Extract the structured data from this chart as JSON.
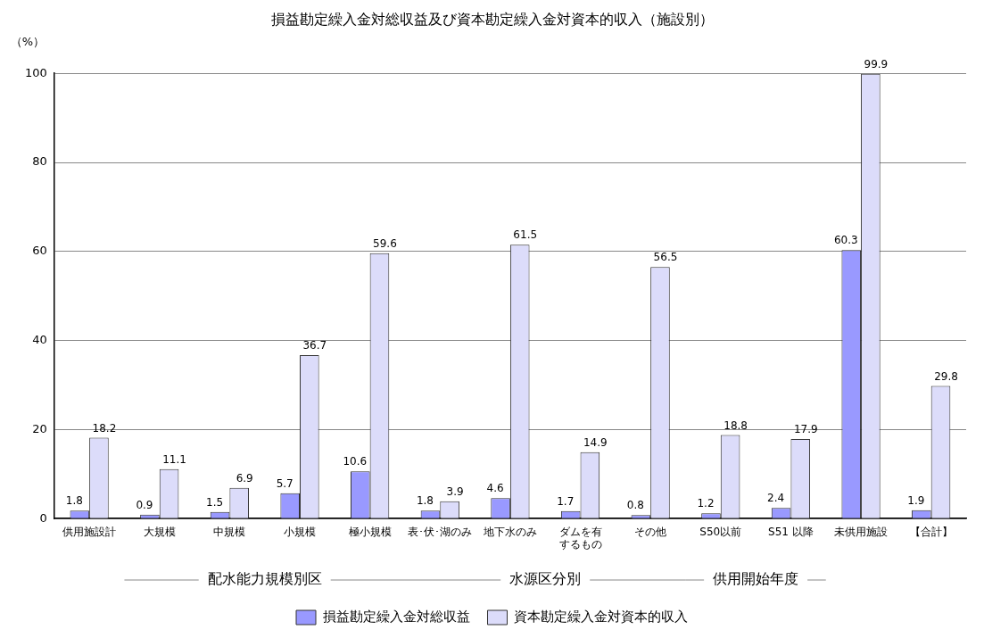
{
  "chart_data": {
    "type": "bar",
    "title": "損益勘定繰入金対総収益及び資本勘定繰入金対資本的収入（施設別）",
    "ylabel": "（%）",
    "categories": [
      "供用施設計",
      "大規模",
      "中規模",
      "小規模",
      "極小規模",
      "表･伏･湖のみ",
      "地下水のみ",
      "ダムを有するもの",
      "その他",
      "S50以前",
      "S51 以降",
      "未供用施設",
      "【合計】"
    ],
    "series": [
      {
        "name": "損益勘定繰入金対総収益",
        "color": "#9999ff",
        "values": [
          1.8,
          0.9,
          1.5,
          5.7,
          10.6,
          1.8,
          4.6,
          1.7,
          0.8,
          1.2,
          2.4,
          60.3,
          1.9
        ]
      },
      {
        "name": "資本勘定繰入金対資本的収入",
        "color": "#dcdcfa",
        "values": [
          18.2,
          11.1,
          6.9,
          36.7,
          59.6,
          3.9,
          61.5,
          14.9,
          56.5,
          18.8,
          17.9,
          99.9,
          29.8
        ]
      }
    ],
    "annotations": [
      "配水能力規模別区",
      "水源区分別",
      "供用開始年度"
    ],
    "ylim": [
      0,
      100
    ],
    "yticks": [
      0,
      20,
      40,
      60,
      80,
      100
    ],
    "grid": "y",
    "legend": "bottom",
    "data_labels": true
  }
}
